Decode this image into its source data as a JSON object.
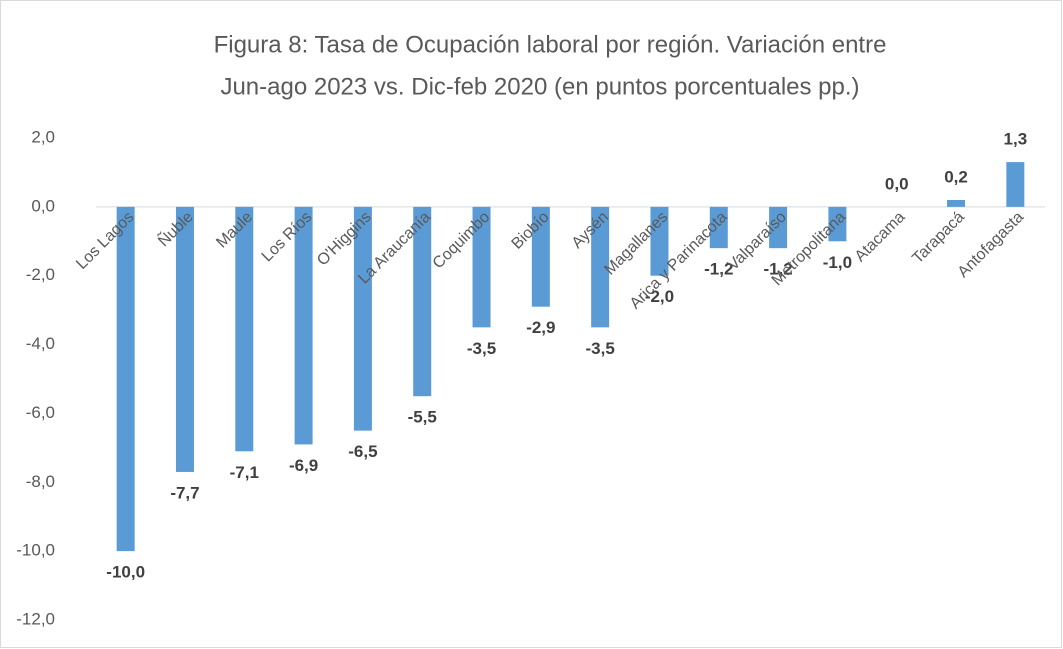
{
  "chart_data": {
    "type": "bar",
    "title": [
      "Figura 8: Tasa de Ocupación laboral por región. Variación entre",
      "Jun-ago 2023 vs. Dic-feb 2020 (en puntos porcentuales pp.)"
    ],
    "categories": [
      "Los Lagos",
      "Ñuble",
      "Maule",
      "Los Ríos",
      "O'Higgins",
      "La Araucanía",
      "Coquimbo",
      "Biobío",
      "Aysén",
      "Magallanes",
      "Arica y Parinacota",
      "Valparaíso",
      "Metropolitana",
      "Atacama",
      "Tarapacá",
      "Antofagasta"
    ],
    "values": [
      -10.0,
      -7.7,
      -7.1,
      -6.9,
      -6.5,
      -5.5,
      -3.5,
      -2.9,
      -3.5,
      -2.0,
      -1.2,
      -1.2,
      -1.0,
      0.0,
      0.2,
      1.3
    ],
    "value_labels": [
      "-10,0",
      "-7,7",
      "-7,1",
      "-6,9",
      "-6,5",
      "-5,5",
      "-3,5",
      "-2,9",
      "-3,5",
      "-2,0",
      "-1,2",
      "-1,2",
      "-1,0",
      "0,0",
      "0,2",
      "1,3"
    ],
    "color": "#5b9bd5",
    "ylim": [
      -12,
      2
    ],
    "yticks": [
      {
        "value": 2,
        "label": "2,0"
      },
      {
        "value": 0,
        "label": "0,0"
      },
      {
        "value": -2,
        "label": "-2,0"
      },
      {
        "value": -4,
        "label": "-4,0"
      },
      {
        "value": -6,
        "label": "-6,0"
      },
      {
        "value": -8,
        "label": "-8,0"
      },
      {
        "value": -10,
        "label": "-10,0"
      },
      {
        "value": -12,
        "label": "-12,0"
      }
    ],
    "grid": false
  }
}
